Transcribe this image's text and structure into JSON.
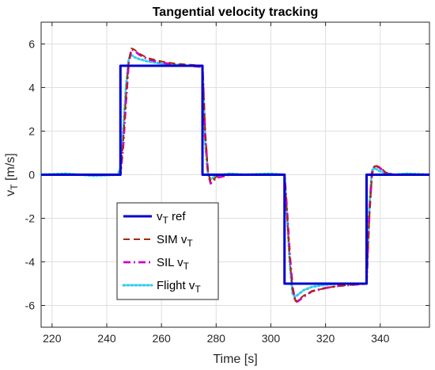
{
  "chart_data": {
    "type": "line",
    "title": "Tangential velocity tracking",
    "xlabel": "Time [s]",
    "ylabel": {
      "main": "v",
      "sub": "T",
      "unit": " [m/s]"
    },
    "xlim": [
      216,
      358
    ],
    "ylim": [
      -7,
      7
    ],
    "xticks": [
      220,
      240,
      260,
      280,
      300,
      320,
      340
    ],
    "yticks": [
      -6,
      -4,
      -2,
      0,
      2,
      4,
      6
    ],
    "grid": true,
    "legend_position": "bottom-left (inside axes)",
    "series": [
      {
        "name": {
          "main": "v",
          "sub": "T",
          "suffix": " ref"
        },
        "color": "#0000cc",
        "style": "solid",
        "x": [
          216,
          245,
          245,
          275,
          275,
          305,
          305,
          335,
          335,
          358
        ],
        "y": [
          0,
          0,
          5,
          5,
          0,
          0,
          -5,
          -5,
          0,
          0
        ]
      },
      {
        "name": {
          "prefix": "SIM ",
          "main": "v",
          "sub": "T"
        },
        "color": "#a52a00",
        "style": "dashed",
        "x": [
          216,
          245,
          246,
          247,
          248,
          249,
          250,
          252,
          255,
          260,
          265,
          270,
          275,
          276,
          277,
          278,
          280,
          285,
          290,
          305,
          306,
          307,
          308,
          309,
          310,
          312,
          315,
          320,
          325,
          330,
          335,
          336,
          337,
          338,
          340,
          342,
          345,
          358
        ],
        "y": [
          0,
          0,
          1.5,
          3.5,
          5.2,
          5.8,
          5.75,
          5.55,
          5.35,
          5.2,
          5.1,
          5.05,
          5.0,
          2.0,
          0.2,
          -0.35,
          -0.1,
          0.02,
          0,
          0,
          -2,
          -4,
          -5.3,
          -5.8,
          -5.75,
          -5.55,
          -5.35,
          -5.2,
          -5.1,
          -5.05,
          -5.0,
          -2.0,
          0.0,
          0.4,
          0.35,
          0.1,
          0,
          0
        ]
      },
      {
        "name": {
          "prefix": "SIL ",
          "main": "v",
          "sub": "T"
        },
        "color": "#cc00cc",
        "style": "dashdot",
        "x": [
          216,
          245,
          246,
          247,
          248,
          249,
          250,
          252,
          255,
          260,
          265,
          270,
          275,
          276,
          277,
          278,
          280,
          285,
          290,
          305,
          306,
          307,
          308,
          309,
          310,
          312,
          315,
          320,
          325,
          330,
          335,
          336,
          337,
          338,
          340,
          342,
          345,
          358
        ],
        "y": [
          0,
          0,
          1.3,
          3.3,
          5.1,
          5.75,
          5.7,
          5.5,
          5.3,
          5.15,
          5.05,
          5.0,
          4.95,
          1.8,
          0.1,
          -0.4,
          -0.15,
          0.0,
          0,
          0,
          -1.8,
          -3.8,
          -5.2,
          -5.85,
          -5.8,
          -5.6,
          -5.35,
          -5.2,
          -5.1,
          -5.05,
          -5.0,
          -1.8,
          0.1,
          0.45,
          0.3,
          0.05,
          0,
          0
        ]
      },
      {
        "name": {
          "prefix": "Flight ",
          "main": "v",
          "sub": "T"
        },
        "color": "#33ccee",
        "style": "dotted",
        "x": [
          216,
          225,
          235,
          244,
          245,
          246,
          247,
          248,
          249,
          250,
          252,
          255,
          260,
          265,
          270,
          275,
          276,
          277,
          278,
          280,
          285,
          290,
          300,
          305,
          306,
          307,
          308,
          309,
          310,
          312,
          315,
          320,
          325,
          330,
          335,
          336,
          337,
          338,
          340,
          345,
          350,
          358
        ],
        "y": [
          0,
          0.05,
          -0.05,
          0,
          0.3,
          2.0,
          4.0,
          5.3,
          5.5,
          5.4,
          5.3,
          5.2,
          5.1,
          5.05,
          5.0,
          5.0,
          1.5,
          0.0,
          -0.2,
          -0.05,
          0.05,
          0,
          0.05,
          0,
          -2.0,
          -4.2,
          -5.5,
          -5.6,
          -5.5,
          -5.3,
          -5.15,
          -5.05,
          -5.0,
          -5.0,
          -5.0,
          -1.5,
          0.2,
          0.3,
          0.15,
          0.0,
          0.05,
          0
        ]
      }
    ],
    "colors": {
      "axes_line": "#262626",
      "grid": "#dfdfdf",
      "background": "#ffffff"
    }
  }
}
